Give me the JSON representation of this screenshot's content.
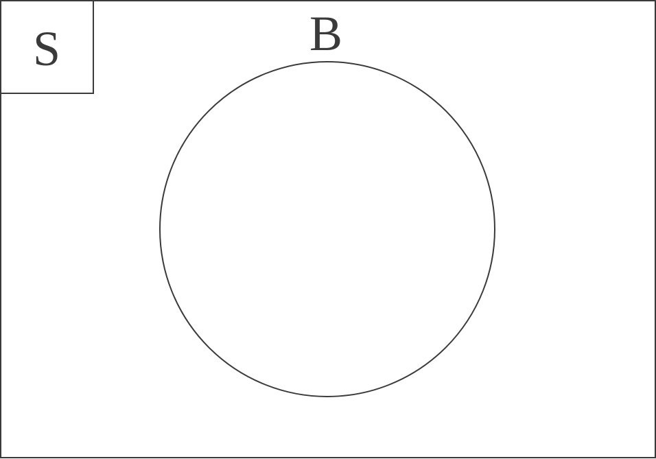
{
  "diagram": {
    "type": "venn",
    "universal_set": {
      "label": "S"
    },
    "sets": [
      {
        "label": "B"
      }
    ],
    "colors": {
      "stroke": "#3a3a3a",
      "background": "#ffffff",
      "text": "#3a3a3a"
    }
  }
}
